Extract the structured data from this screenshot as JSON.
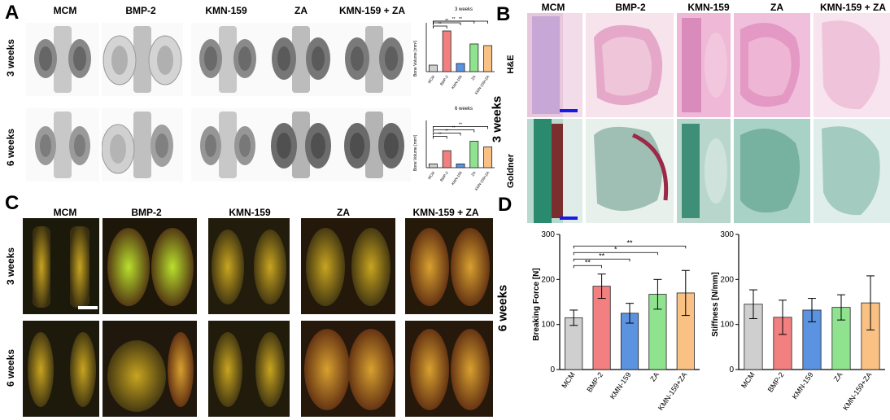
{
  "panel_letters": {
    "a": "A",
    "b": "B",
    "c": "C",
    "d": "D"
  },
  "groups": [
    "MCM",
    "BMP-2",
    "KMN-159",
    "ZA",
    "KMN-159 + ZA"
  ],
  "timepoints": {
    "w3": "3 weeks",
    "w6": "6 weeks"
  },
  "histology": {
    "he": "H&E",
    "goldner": "Goldner",
    "timepoint": "3 weeks"
  },
  "colors": {
    "mcm": "#cfcfcf",
    "bmp2": "#f28080",
    "kmn159": "#5b93e0",
    "za": "#8fe38f",
    "combo": "#f9c284"
  },
  "chart_data": [
    {
      "type": "bar",
      "panel": "A",
      "title": "3 weeks",
      "ylabel": "Bone Volume [mm³]",
      "categories": [
        "MCM",
        "BMP-2",
        "KMN-159",
        "ZA",
        "KMN-159+ZA"
      ],
      "values": [
        4,
        25,
        5,
        17,
        16
      ],
      "ylim": [
        0,
        30
      ],
      "significance": [
        "**",
        "**",
        "**",
        "**",
        "*"
      ]
    },
    {
      "type": "bar",
      "panel": "A",
      "title": "6 weeks",
      "ylabel": "Bone Volume [mm³]",
      "categories": [
        "MCM",
        "BMP-2",
        "KMN-159",
        "ZA",
        "KMN-159+ZA"
      ],
      "values": [
        2,
        9,
        2,
        14,
        11
      ],
      "ylim": [
        0,
        25
      ],
      "significance": [
        "**",
        "**",
        "**",
        "**",
        "**"
      ]
    },
    {
      "type": "bar",
      "panel": "D",
      "title": "",
      "row_label": "6 weeks",
      "ylabel": "Breaking Force [N]",
      "categories": [
        "MCM",
        "BMP-2",
        "KMN-159",
        "ZA",
        "KMN-159+ZA"
      ],
      "values": [
        115,
        185,
        125,
        167,
        170
      ],
      "errors": [
        17,
        27,
        22,
        33,
        50
      ],
      "ylim": [
        0,
        300
      ],
      "yticks": [
        0,
        100,
        200,
        300
      ],
      "significance": [
        "**",
        "**",
        "*",
        "**",
        "*"
      ]
    },
    {
      "type": "bar",
      "panel": "D",
      "title": "",
      "ylabel": "Stiffness [N/mm]",
      "categories": [
        "MCM",
        "BMP-2",
        "KMN-159",
        "ZA",
        "KMN-159+ZA"
      ],
      "values": [
        145,
        116,
        132,
        138,
        148
      ],
      "errors": [
        32,
        38,
        26,
        28,
        60
      ],
      "ylim": [
        0,
        300
      ],
      "yticks": [
        0,
        100,
        200,
        300
      ]
    }
  ]
}
